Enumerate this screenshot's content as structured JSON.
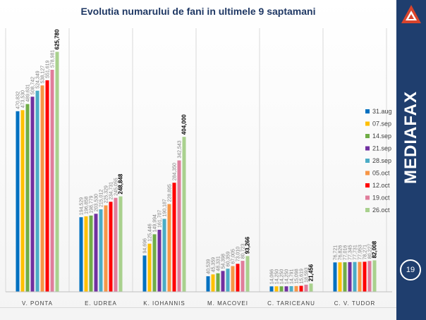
{
  "title": "Evolutia numarului de fani in ultimele 9 saptamani",
  "brand": {
    "name": "MEDIAFAX",
    "accent": "#d9442c",
    "sidebar_color": "#1f3e6e"
  },
  "page_number": "19",
  "chart_data": {
    "type": "bar",
    "title": "Evolutia numarului de fani in ultimele 9 saptamani",
    "xlabel": "",
    "ylabel": "",
    "ylim": [
      0,
      680000
    ],
    "grid": false,
    "legend_position": "right",
    "categories": [
      "V. PONTA",
      "E. UDREA",
      "K. IOHANNIS",
      "M. MACOVEI",
      "C. TARICEANU",
      "C. V. TUDOR"
    ],
    "series": [
      {
        "name": "31.aug",
        "color": "#0070c0",
        "values": [
          470832,
          194529,
          94696,
          40539,
          14066,
          76721
        ],
        "labels": [
          "470,832",
          "194,529",
          "94,696",
          "40,539",
          "14,066",
          "76,721"
        ]
      },
      {
        "name": "07.sep",
        "color": "#ffc000",
        "values": [
          473530,
          196858,
          125446,
          45359,
          14250,
          76826
        ],
        "labels": [
          "473,530",
          "196,858",
          "125,446",
          "45,359",
          "14,250",
          "76,826"
        ]
      },
      {
        "name": "14.sep",
        "color": "#70ad47",
        "values": [
          489631,
          198779,
          149994,
          48331,
          14250,
          77016
        ],
        "labels": [
          "489,631",
          "198,779",
          "149,994",
          "48,331",
          "14,250",
          "77,016"
        ]
      },
      {
        "name": "21.sep",
        "color": "#7030a0",
        "values": [
          508742,
          203530,
          161707,
          54398,
          14250,
          77345
        ],
        "labels": [
          "508,742",
          "203,530",
          "161,707",
          "54,398",
          "14,250",
          "77,345"
        ]
      },
      {
        "name": "28.sep",
        "color": "#4bacc6",
        "values": [
          524349,
          215012,
          190187,
          60359,
          14791,
          77731
        ],
        "labels": [
          "524,349",
          "215,012",
          "190,187",
          "60,359",
          "14,791",
          "77,731"
        ]
      },
      {
        "name": "05.oct",
        "color": "#f79646",
        "values": [
          538127,
          225329,
          228895,
          67005,
          15098,
          77953
        ],
        "labels": [
          "538,127",
          "225,329",
          "228,895",
          "67,005",
          "15,098",
          "77,953"
        ]
      },
      {
        "name": "12.oct",
        "color": "#ff0000",
        "values": [
          551619,
          234731,
          284350,
          73010,
          15619,
          78271
        ],
        "labels": [
          "551,619",
          "234,731",
          "284,350",
          "73,010",
          "15,619",
          "78,271"
        ]
      },
      {
        "name": "19.oct",
        "color": "#e07d9b",
        "values": [
          578981,
          245055,
          342543,
          80723,
          18593,
          80227
        ],
        "labels": [
          "578,981",
          "245,055",
          "342,543",
          "80,723",
          "18,593",
          "80,227"
        ]
      },
      {
        "name": "26.oct",
        "color": "#a9d18e",
        "values": [
          625780,
          248848,
          404000,
          93266,
          21456,
          82008
        ],
        "labels": [
          "625,780",
          "248,848",
          "404,000",
          "93,266",
          "21,456",
          "82,008"
        ]
      }
    ]
  }
}
